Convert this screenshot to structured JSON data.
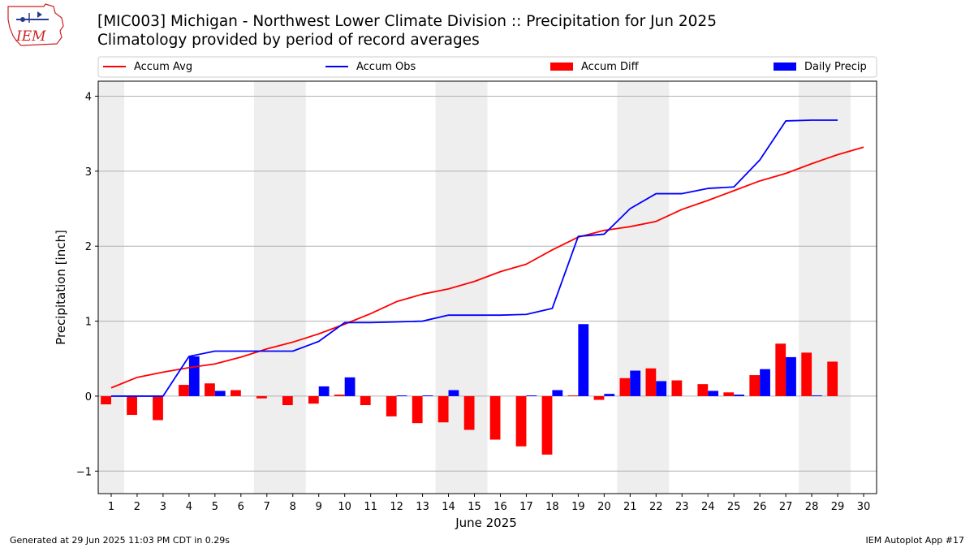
{
  "header": {
    "title": "[MIC003] Michigan - Northwest Lower Climate Division :: Precipitation for Jun 2025",
    "subtitle": "Climatology provided by period of record averages",
    "logo_text": "IEM"
  },
  "footer": {
    "left": "Generated at 29 Jun 2025 11:03 PM CDT in 0.29s",
    "right": "IEM Autoplot App #17"
  },
  "colors": {
    "avg": "#ff0000",
    "obs": "#0000ff",
    "diff": "#ff0000",
    "daily": "#0000ff",
    "weekend_band": "#eeeeee",
    "grid": "#b0b0b0"
  },
  "chart_data": {
    "type": "bar",
    "xlabel": "June 2025",
    "ylabel": "Precipitation [inch]",
    "xlim": [
      0.5,
      30.5
    ],
    "ylim": [
      -1.3,
      4.2
    ],
    "yticks": [
      -1,
      0,
      1,
      2,
      3,
      4
    ],
    "ytick_labels": [
      "−1",
      "0",
      "1",
      "2",
      "3",
      "4"
    ],
    "grid": true,
    "legend_position": "top",
    "days": [
      1,
      2,
      3,
      4,
      5,
      6,
      7,
      8,
      9,
      10,
      11,
      12,
      13,
      14,
      15,
      16,
      17,
      18,
      19,
      20,
      21,
      22,
      23,
      24,
      25,
      26,
      27,
      28,
      29,
      30
    ],
    "weekend_bands": [
      [
        0.5,
        1.5
      ],
      [
        6.5,
        8.5
      ],
      [
        13.5,
        15.5
      ],
      [
        20.5,
        22.5
      ],
      [
        27.5,
        29.5
      ]
    ],
    "series": [
      {
        "name": "Accum Avg",
        "kind": "line",
        "color": "#ff0000",
        "values": [
          0.11,
          0.25,
          0.32,
          0.38,
          0.43,
          0.52,
          0.63,
          0.72,
          0.83,
          0.96,
          1.1,
          1.26,
          1.36,
          1.43,
          1.53,
          1.66,
          1.76,
          1.95,
          2.12,
          2.21,
          2.26,
          2.33,
          2.49,
          2.61,
          2.74,
          2.87,
          2.97,
          3.1,
          3.22,
          3.32
        ]
      },
      {
        "name": "Accum Obs",
        "kind": "line",
        "color": "#0000ff",
        "values": [
          0.0,
          0.0,
          0.0,
          0.53,
          0.6,
          0.6,
          0.6,
          0.6,
          0.73,
          0.98,
          0.98,
          0.99,
          1.0,
          1.08,
          1.08,
          1.08,
          1.09,
          1.17,
          2.13,
          2.16,
          2.5,
          2.7,
          2.7,
          2.77,
          2.79,
          3.15,
          3.67,
          3.68,
          3.68,
          null
        ]
      },
      {
        "name": "Accum Diff",
        "kind": "bar",
        "color": "#ff0000",
        "values": [
          -0.11,
          -0.25,
          -0.32,
          0.15,
          0.17,
          0.08,
          -0.03,
          -0.12,
          -0.1,
          0.02,
          -0.12,
          -0.27,
          -0.36,
          -0.35,
          -0.45,
          -0.58,
          -0.67,
          -0.78,
          0.01,
          -0.05,
          0.24,
          0.37,
          0.21,
          0.16,
          0.05,
          0.28,
          0.7,
          0.58,
          0.46,
          null
        ]
      },
      {
        "name": "Daily Precip",
        "kind": "bar",
        "color": "#0000ff",
        "values": [
          0.0,
          0.0,
          0.0,
          0.53,
          0.07,
          0.0,
          0.0,
          0.0,
          0.13,
          0.25,
          0.0,
          0.01,
          0.01,
          0.08,
          0.0,
          0.0,
          0.01,
          0.08,
          0.96,
          0.03,
          0.34,
          0.2,
          0.0,
          0.07,
          0.02,
          0.36,
          0.52,
          0.01,
          0.0,
          null
        ]
      }
    ]
  }
}
